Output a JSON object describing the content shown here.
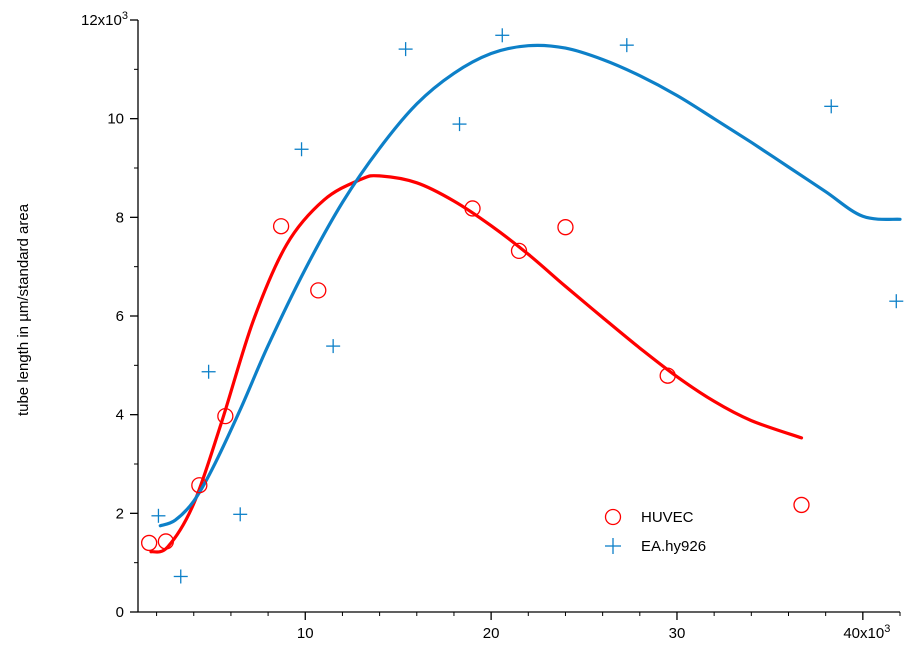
{
  "chart_data": {
    "type": "scatter",
    "title": "",
    "xlabel": "",
    "ylabel": "tube length in µm/standard area",
    "xlim": [
      1000,
      42000
    ],
    "ylim": [
      0,
      12000
    ],
    "x_ticks": [
      {
        "value": 10000,
        "label": "10"
      },
      {
        "value": 20000,
        "label": "20"
      },
      {
        "value": 30000,
        "label": "30"
      },
      {
        "value": 40000,
        "label": "40x10",
        "exp": "3"
      }
    ],
    "y_ticks": [
      {
        "value": 0,
        "label": "0"
      },
      {
        "value": 2000,
        "label": "2"
      },
      {
        "value": 4000,
        "label": "4"
      },
      {
        "value": 6000,
        "label": "6"
      },
      {
        "value": 8000,
        "label": "8"
      },
      {
        "value": 10000,
        "label": "10"
      },
      {
        "value": 12000,
        "label": "12x10",
        "exp": "3"
      }
    ],
    "grid": false,
    "legend_position": "bottom-right",
    "series": [
      {
        "name": "HUVEC",
        "marker": "circle",
        "color": "#ff0000",
        "points": [
          {
            "x": 1600,
            "y": 1400
          },
          {
            "x": 2500,
            "y": 1430
          },
          {
            "x": 4300,
            "y": 2570
          },
          {
            "x": 5700,
            "y": 3970
          },
          {
            "x": 8700,
            "y": 7820
          },
          {
            "x": 10700,
            "y": 6520
          },
          {
            "x": 19000,
            "y": 8180
          },
          {
            "x": 21500,
            "y": 7320
          },
          {
            "x": 24000,
            "y": 7800
          },
          {
            "x": 29500,
            "y": 4790
          },
          {
            "x": 36700,
            "y": 2170
          }
        ],
        "fit": {
          "color": "#ff0000",
          "points": [
            {
              "x": 1700,
              "y": 1220
            },
            {
              "x": 2600,
              "y": 1320
            },
            {
              "x": 4000,
              "y": 2200
            },
            {
              "x": 5500,
              "y": 3850
            },
            {
              "x": 7200,
              "y": 5900
            },
            {
              "x": 9000,
              "y": 7450
            },
            {
              "x": 11000,
              "y": 8350
            },
            {
              "x": 13000,
              "y": 8770
            },
            {
              "x": 14000,
              "y": 8840
            },
            {
              "x": 16000,
              "y": 8700
            },
            {
              "x": 18000,
              "y": 8330
            },
            {
              "x": 20000,
              "y": 7830
            },
            {
              "x": 22000,
              "y": 7250
            },
            {
              "x": 24000,
              "y": 6600
            },
            {
              "x": 26000,
              "y": 5970
            },
            {
              "x": 28000,
              "y": 5350
            },
            {
              "x": 30000,
              "y": 4770
            },
            {
              "x": 32000,
              "y": 4270
            },
            {
              "x": 34000,
              "y": 3880
            },
            {
              "x": 36700,
              "y": 3530
            }
          ]
        }
      },
      {
        "name": "EA.hy926",
        "marker": "plus",
        "color": "#0d80c8",
        "points": [
          {
            "x": 2100,
            "y": 1950
          },
          {
            "x": 3300,
            "y": 720
          },
          {
            "x": 4800,
            "y": 4870
          },
          {
            "x": 6500,
            "y": 1980
          },
          {
            "x": 9800,
            "y": 9380
          },
          {
            "x": 11500,
            "y": 5390
          },
          {
            "x": 15400,
            "y": 11410
          },
          {
            "x": 18300,
            "y": 9890
          },
          {
            "x": 20600,
            "y": 11690
          },
          {
            "x": 27300,
            "y": 11490
          },
          {
            "x": 38300,
            "y": 10250
          },
          {
            "x": 41800,
            "y": 6300
          }
        ],
        "fit": {
          "color": "#0d80c8",
          "points": [
            {
              "x": 2200,
              "y": 1750
            },
            {
              "x": 3000,
              "y": 1860
            },
            {
              "x": 4000,
              "y": 2250
            },
            {
              "x": 5000,
              "y": 2900
            },
            {
              "x": 6500,
              "y": 4100
            },
            {
              "x": 8000,
              "y": 5400
            },
            {
              "x": 10000,
              "y": 6950
            },
            {
              "x": 12000,
              "y": 8300
            },
            {
              "x": 14000,
              "y": 9400
            },
            {
              "x": 16000,
              "y": 10300
            },
            {
              "x": 18000,
              "y": 10920
            },
            {
              "x": 20000,
              "y": 11320
            },
            {
              "x": 22000,
              "y": 11480
            },
            {
              "x": 24000,
              "y": 11430
            },
            {
              "x": 26000,
              "y": 11200
            },
            {
              "x": 28000,
              "y": 10870
            },
            {
              "x": 30000,
              "y": 10470
            },
            {
              "x": 32000,
              "y": 10000
            },
            {
              "x": 34000,
              "y": 9520
            },
            {
              "x": 36000,
              "y": 9020
            },
            {
              "x": 38000,
              "y": 8520
            },
            {
              "x": 40000,
              "y": 8020
            },
            {
              "x": 42000,
              "y": 7960
            }
          ]
        }
      }
    ]
  }
}
